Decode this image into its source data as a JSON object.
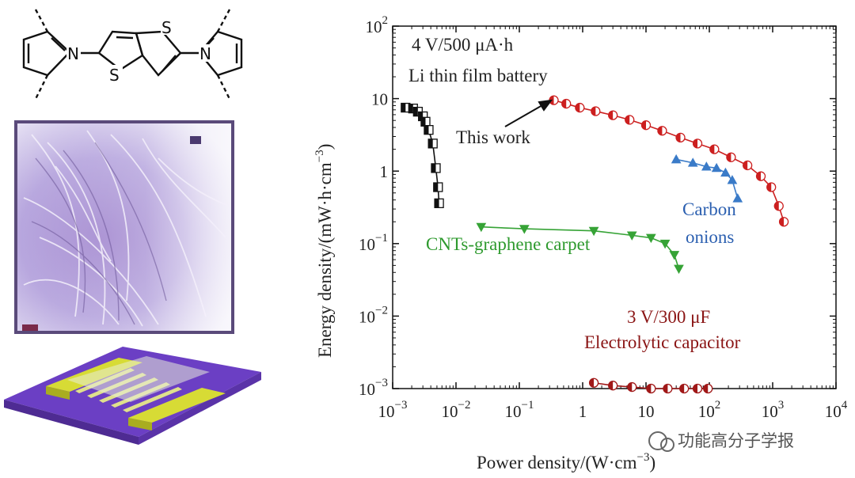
{
  "chart_data": {
    "type": "scatter",
    "x_scale": "log",
    "y_scale": "log",
    "xlim": [
      0.001,
      10000
    ],
    "ylim": [
      0.001,
      100
    ],
    "xlabel": "Power density/(W·cm",
    "xlabel_sup": "−3",
    "xlabel_end": ")",
    "ylabel": "Energy density/(mW·h·cm",
    "ylabel_sup": "−3",
    "ylabel_end": ")",
    "x_ticks": [
      {
        "value": 0.001,
        "base": "10",
        "exp": "−3"
      },
      {
        "value": 0.01,
        "base": "10",
        "exp": "−2"
      },
      {
        "value": 0.1,
        "base": "10",
        "exp": "−1"
      },
      {
        "value": 1,
        "base": "1",
        "exp": ""
      },
      {
        "value": 10,
        "base": "10",
        "exp": ""
      },
      {
        "value": 100,
        "base": "10",
        "exp": "2"
      },
      {
        "value": 1000,
        "base": "10",
        "exp": "3"
      },
      {
        "value": 10000,
        "base": "10",
        "exp": "4"
      }
    ],
    "y_ticks": [
      {
        "value": 0.001,
        "base": "10",
        "exp": "−3"
      },
      {
        "value": 0.01,
        "base": "10",
        "exp": "−2"
      },
      {
        "value": 0.1,
        "base": "10",
        "exp": "−1"
      },
      {
        "value": 1,
        "base": "1",
        "exp": ""
      },
      {
        "value": 10,
        "base": "10",
        "exp": ""
      },
      {
        "value": 100,
        "base": "10",
        "exp": "2"
      }
    ],
    "series": [
      {
        "name": "4 V/500 μA·h Li thin film battery",
        "color": "#111111",
        "marker": "square-half",
        "x": [
          0.0016,
          0.0021,
          0.0025,
          0.003,
          0.0033,
          0.0037,
          0.0043,
          0.0048,
          0.0052,
          0.0054
        ],
        "y": [
          7.5,
          7.3,
          6.6,
          5.7,
          4.8,
          3.7,
          2.4,
          1.1,
          0.6,
          0.36
        ]
      },
      {
        "name": "This work",
        "color": "#cc1f1f",
        "marker": "circle-half",
        "x": [
          0.35,
          0.55,
          0.9,
          1.6,
          3,
          5.5,
          10,
          18,
          35,
          65,
          120,
          220,
          400,
          650,
          950,
          1250,
          1500
        ],
        "y": [
          9.5,
          8.5,
          7.5,
          6.7,
          5.9,
          5.1,
          4.3,
          3.6,
          2.9,
          2.4,
          2.0,
          1.55,
          1.2,
          0.85,
          0.6,
          0.33,
          0.2
        ]
      },
      {
        "name": "Carbon onions",
        "color": "#3a7bc8",
        "marker": "triangle-up",
        "x": [
          30,
          55,
          90,
          130,
          180,
          230,
          280
        ],
        "y": [
          1.45,
          1.3,
          1.15,
          1.1,
          0.95,
          0.75,
          0.42
        ]
      },
      {
        "name": "CNTs-graphene carpet",
        "color": "#36a336",
        "marker": "triangle-down",
        "x": [
          0.025,
          0.12,
          1.5,
          6,
          12,
          20,
          28,
          33
        ],
        "y": [
          0.17,
          0.16,
          0.15,
          0.13,
          0.12,
          0.1,
          0.07,
          0.045
        ]
      },
      {
        "name": "3 V/300 μF Electrolytic capacitor",
        "color": "#a01818",
        "marker": "circle-half",
        "x": [
          1.5,
          3,
          6,
          12,
          22,
          40,
          65,
          95
        ],
        "y": [
          0.0012,
          0.0011,
          0.00105,
          0.001,
          0.001,
          0.001,
          0.001,
          0.001
        ]
      }
    ],
    "annotations": {
      "battery_line1": "4 V/500 μA·h",
      "battery_line2": "Li thin film battery",
      "this_work": "This work",
      "carbon_line1": "Carbon",
      "carbon_line2": "onions",
      "cnt": "CNTs-graphene carpet",
      "cap_line1": "3 V/300 μF",
      "cap_line2": "Electrolytic capacitor"
    },
    "colors": {
      "battery_text": "#222222",
      "this_work_text": "#222222",
      "carbon_text": "#2b5fb0",
      "cnt_text": "#2e9a2e",
      "cap_text": "#8a1414"
    }
  },
  "molecule": {
    "atoms": [
      "N",
      "S",
      "S",
      "N"
    ]
  },
  "watermark": "功能高分子学报"
}
